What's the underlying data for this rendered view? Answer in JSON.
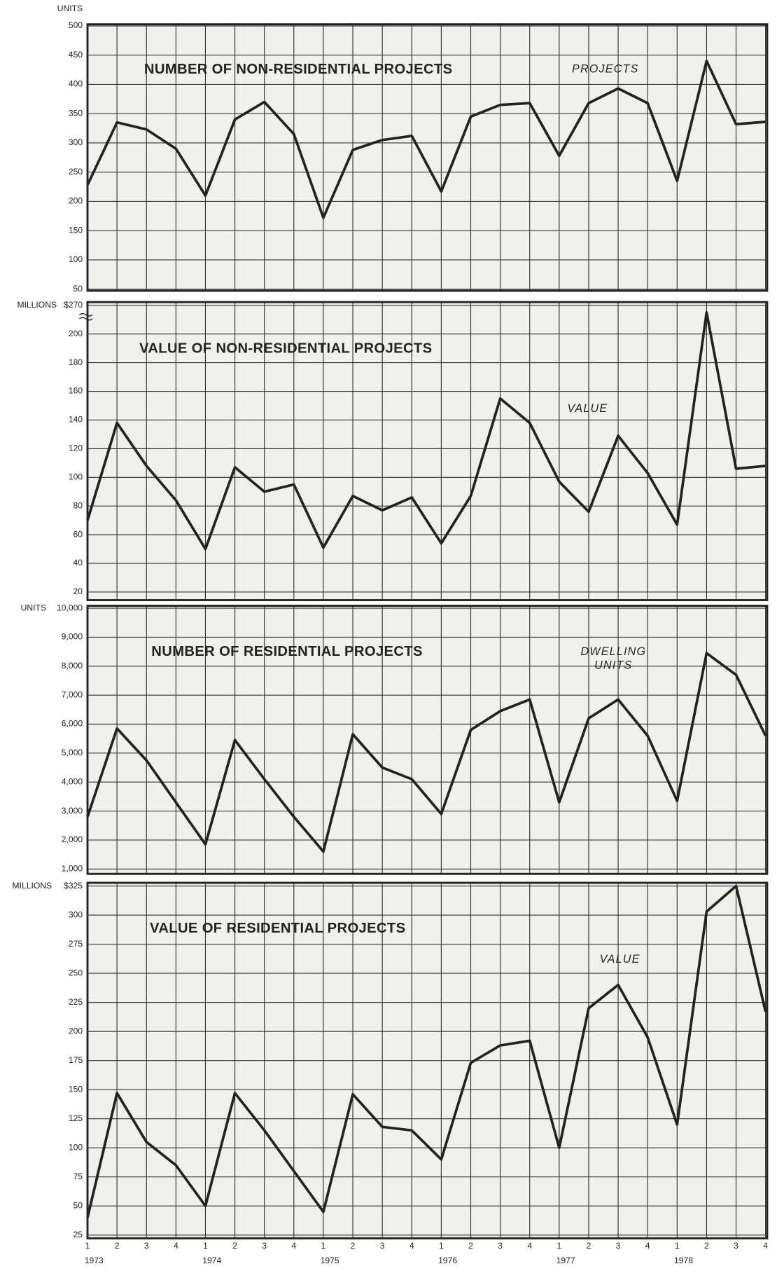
{
  "chart_data": [
    {
      "type": "line",
      "title": "NUMBER OF NON-RESIDENTIAL PROJECTS",
      "annotation": [
        "PROJECTS"
      ],
      "y_unit": "UNITS",
      "values": [
        228,
        335,
        323,
        290,
        210,
        340,
        370,
        315,
        172,
        288,
        305,
        312,
        217,
        345,
        365,
        368,
        278,
        368,
        393,
        368,
        235,
        440,
        332,
        336
      ],
      "color": "#222222",
      "ylim": [
        50,
        500
      ],
      "yticks": [
        50,
        100,
        150,
        200,
        250,
        300,
        350,
        400,
        450,
        500
      ],
      "grid": true
    },
    {
      "type": "line",
      "title": "VALUE OF NON-RESIDENTIAL PROJECTS",
      "annotation": [
        "VALUE"
      ],
      "y_unit": "MILLIONS",
      "values": [
        70,
        138,
        108,
        84,
        50,
        107,
        90,
        95,
        51,
        87,
        77,
        86,
        54,
        87,
        155,
        138,
        97,
        76,
        129,
        103,
        67,
        265,
        106,
        108
      ],
      "color": "#222222",
      "ylim": [
        20,
        270
      ],
      "ybreak": [
        210,
        260
      ],
      "yticks": [
        20,
        40,
        60,
        80,
        100,
        120,
        140,
        160,
        180,
        200,
        {
          "value": 270,
          "label": "$270"
        }
      ],
      "grid": true
    },
    {
      "type": "line",
      "title": "NUMBER OF RESIDENTIAL PROJECTS",
      "annotation": [
        "DWELLING",
        "UNITS"
      ],
      "y_unit": "UNITS",
      "values": [
        2800,
        5850,
        4750,
        3300,
        1850,
        5450,
        4100,
        2800,
        1600,
        5650,
        4500,
        4100,
        2900,
        5800,
        6450,
        6850,
        3300,
        6200,
        6850,
        5600,
        3350,
        8450,
        7700,
        5600
      ],
      "color": "#222222",
      "ylim": [
        1000,
        10000
      ],
      "yticks": [
        {
          "value": 1000,
          "label": "1,000"
        },
        {
          "value": 2000,
          "label": "2,000"
        },
        {
          "value": 3000,
          "label": "3,000"
        },
        {
          "value": 4000,
          "label": "4,000"
        },
        {
          "value": 5000,
          "label": "5,000"
        },
        {
          "value": 6000,
          "label": "6,000"
        },
        {
          "value": 7000,
          "label": "7,000"
        },
        {
          "value": 8000,
          "label": "8,000"
        },
        {
          "value": 9000,
          "label": "9,000"
        },
        {
          "value": 10000,
          "label": "10,000"
        }
      ],
      "grid": true
    },
    {
      "type": "line",
      "title": "VALUE OF RESIDENTIAL PROJECTS",
      "annotation": [
        "VALUE"
      ],
      "y_unit": "MILLIONS",
      "categories": [
        "1",
        "2",
        "3",
        "4",
        "1",
        "2",
        "3",
        "4",
        "1",
        "2",
        "3",
        "4",
        "1",
        "2",
        "3",
        "4",
        "1",
        "2",
        "3",
        "4",
        "1",
        "2",
        "3",
        "4"
      ],
      "years": [
        "1973",
        "1974",
        "1975",
        "1976",
        "1977",
        "1978"
      ],
      "values": [
        40,
        147,
        105,
        85,
        50,
        147,
        115,
        80,
        45,
        146,
        118,
        115,
        90,
        173,
        188,
        192,
        100,
        220,
        240,
        195,
        120,
        303,
        325,
        217
      ],
      "color": "#222222",
      "ylim": [
        25,
        325
      ],
      "yticks": [
        25,
        50,
        75,
        100,
        125,
        150,
        175,
        200,
        225,
        250,
        275,
        300,
        {
          "value": 325,
          "label": "$325"
        }
      ],
      "grid": true
    }
  ]
}
